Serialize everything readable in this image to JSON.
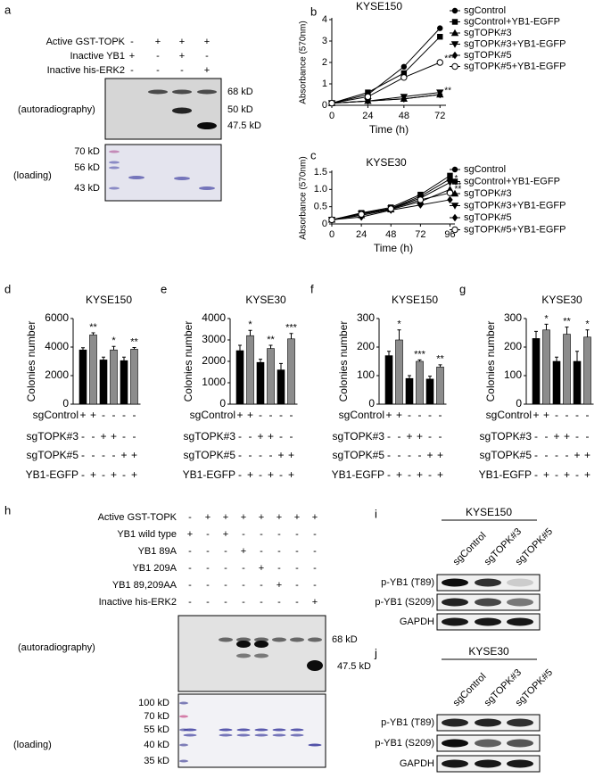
{
  "panel_a": {
    "label": "a",
    "rows": [
      {
        "name": "Active GST-TOPK",
        "signs": [
          "-",
          "+",
          "+",
          "+"
        ]
      },
      {
        "name": "Inactive YB1",
        "signs": [
          "+",
          "-",
          "+",
          "-"
        ]
      },
      {
        "name": "Inactive his-ERK2",
        "signs": [
          "-",
          "-",
          "-",
          "+"
        ]
      }
    ],
    "markers": [
      "68 kD",
      "50 kD",
      "47.5 kD"
    ],
    "autoradiography_label": "(autoradiography)",
    "loading_label": "(loading)",
    "ladder": [
      "70 kD",
      "56 kD",
      "43 kD"
    ]
  },
  "chart_data": [
    {
      "type": "line",
      "panel_label": "b",
      "title": "KYSE150",
      "x_label": "Time (h)",
      "y_label": "Absorbance (570nm)",
      "x": [
        0,
        24,
        48,
        72
      ],
      "xlim": [
        0,
        76
      ],
      "xticks": [
        0,
        24,
        48,
        72
      ],
      "ylim": [
        0,
        4
      ],
      "yticks": [
        0,
        1,
        2,
        3,
        4
      ],
      "series": [
        {
          "name": "sgControl",
          "color": "#000000",
          "marker": "circle",
          "values": [
            0.1,
            0.5,
            1.8,
            3.6
          ]
        },
        {
          "name": "sgControl+YB1-EGFP",
          "color": "#000000",
          "marker": "square",
          "values": [
            0.1,
            0.6,
            1.5,
            3.2
          ]
        },
        {
          "name": "sgTOPK#3",
          "color": "#000000",
          "marker": "triangle",
          "values": [
            0.1,
            0.2,
            0.3,
            0.5
          ]
        },
        {
          "name": "sgTOPK#3+YB1-EGFP",
          "color": "#000000",
          "marker": "triangle-down",
          "values": [
            0.1,
            0.2,
            0.4,
            0.6
          ]
        },
        {
          "name": "sgTOPK#5",
          "color": "#000000",
          "marker": "diamond",
          "values": [
            0.1,
            0.2,
            0.3,
            0.5
          ],
          "annotation": "**"
        },
        {
          "name": "sgTOPK#5+YB1-EGFP",
          "color": "#000000",
          "marker": "open-circle",
          "values": [
            0.1,
            0.4,
            1.3,
            2.0
          ],
          "annotation": "***"
        }
      ]
    },
    {
      "type": "line",
      "panel_label": "c",
      "title": "KYSE30",
      "x_label": "Time (h)",
      "y_label": "Absorbance (570nm)",
      "x": [
        0,
        24,
        48,
        72,
        96
      ],
      "xlim": [
        0,
        100
      ],
      "xticks": [
        0,
        24,
        48,
        72,
        96
      ],
      "ylim": [
        0,
        1.5
      ],
      "yticks": [
        0,
        0.5,
        {
          "value": 1,
          "label": "1.0"
        },
        1.5
      ],
      "series": [
        {
          "name": "sgControl",
          "color": "#000000",
          "marker": "circle",
          "values": [
            0.12,
            0.3,
            0.45,
            0.8,
            1.3
          ]
        },
        {
          "name": "sgControl+YB1-EGFP",
          "color": "#000000",
          "marker": "square",
          "values": [
            0.12,
            0.32,
            0.48,
            0.85,
            1.4
          ]
        },
        {
          "name": "sgTOPK#3",
          "color": "#000000",
          "marker": "triangle",
          "values": [
            0.12,
            0.25,
            0.42,
            0.65,
            1.0
          ],
          "annotation": "**"
        },
        {
          "name": "sgTOPK#3+YB1-EGFP",
          "color": "#000000",
          "marker": "triangle-down",
          "values": [
            0.12,
            0.3,
            0.45,
            0.75,
            1.2
          ],
          "annotation": "*"
        },
        {
          "name": "sgTOPK#5",
          "color": "#000000",
          "marker": "diamond",
          "values": [
            0.12,
            0.2,
            0.4,
            0.55,
            0.7
          ]
        },
        {
          "name": "sgTOPK#5+YB1-EGFP",
          "color": "#000000",
          "marker": "open-circle",
          "values": [
            0.12,
            0.28,
            0.44,
            0.7,
            0.9
          ],
          "annotation": "**"
        }
      ]
    },
    {
      "type": "bar",
      "panel_label": "d",
      "title": "KYSE150",
      "y_label": "Colonies number",
      "ylim": [
        0,
        6000
      ],
      "yticks": [
        0,
        2000,
        4000,
        6000
      ],
      "colors": [
        "#000000",
        "#8c8c8c"
      ],
      "values": [
        3800,
        4850,
        3100,
        3800,
        3050,
        3850
      ],
      "errors": [
        150,
        150,
        200,
        250,
        250,
        120
      ],
      "significance": [
        null,
        "**",
        null,
        "*",
        null,
        "**"
      ],
      "conditions": [
        {
          "name": "sgControl",
          "signs": [
            "+",
            "+",
            "-",
            "-",
            "-",
            "-"
          ]
        },
        {
          "name": "sgTOPK#3",
          "signs": [
            "-",
            "-",
            "+",
            "+",
            "-",
            "-"
          ]
        },
        {
          "name": "sgTOPK#5",
          "signs": [
            "-",
            "-",
            "-",
            "-",
            "+",
            "+"
          ]
        },
        {
          "name": "YB1-EGFP",
          "signs": [
            "-",
            "+",
            "-",
            "+",
            "-",
            "+"
          ]
        }
      ]
    },
    {
      "type": "bar",
      "panel_label": "e",
      "title": "KYSE30",
      "y_label": "Colonies number",
      "ylim": [
        0,
        4000
      ],
      "yticks": [
        0,
        1000,
        2000,
        3000,
        4000
      ],
      "colors": [
        "#000000",
        "#8c8c8c"
      ],
      "values": [
        2500,
        3200,
        1950,
        2600,
        1600,
        3050
      ],
      "errors": [
        250,
        250,
        150,
        150,
        300,
        250
      ],
      "significance": [
        null,
        "*",
        null,
        "**",
        null,
        "***"
      ],
      "conditions": [
        {
          "name": "sgControl",
          "signs": [
            "+",
            "+",
            "-",
            "-",
            "-",
            "-"
          ]
        },
        {
          "name": "sgTOPK#3",
          "signs": [
            "-",
            "-",
            "+",
            "+",
            "-",
            "-"
          ]
        },
        {
          "name": "sgTOPK#5",
          "signs": [
            "-",
            "-",
            "-",
            "-",
            "+",
            "+"
          ]
        },
        {
          "name": "YB1-EGFP",
          "signs": [
            "-",
            "+",
            "-",
            "+",
            "-",
            "+"
          ]
        }
      ]
    },
    {
      "type": "bar",
      "panel_label": "f",
      "title": "KYSE150",
      "y_label": "Colonies number",
      "ylim": [
        0,
        300
      ],
      "yticks": [
        0,
        100,
        200,
        300
      ],
      "colors": [
        "#000000",
        "#8c8c8c"
      ],
      "values": [
        170,
        225,
        90,
        150,
        88,
        130
      ],
      "errors": [
        15,
        35,
        10,
        5,
        10,
        8
      ],
      "significance": [
        null,
        "*",
        null,
        "***",
        null,
        "**"
      ],
      "conditions": [
        {
          "name": "sgControl",
          "signs": [
            "+",
            "+",
            "-",
            "-",
            "-",
            "-"
          ]
        },
        {
          "name": "sgTOPK#3",
          "signs": [
            "-",
            "-",
            "+",
            "+",
            "-",
            "-"
          ]
        },
        {
          "name": "sgTOPK#5",
          "signs": [
            "-",
            "-",
            "-",
            "-",
            "+",
            "+"
          ]
        },
        {
          "name": "YB1-EGFP",
          "signs": [
            "-",
            "+",
            "-",
            "+",
            "-",
            "+"
          ]
        }
      ]
    },
    {
      "type": "bar",
      "panel_label": "g",
      "title": "KYSE30",
      "y_label": "Colonies number",
      "ylim": [
        0,
        300
      ],
      "yticks": [
        0,
        100,
        200,
        300
      ],
      "colors": [
        "#000000",
        "#8c8c8c"
      ],
      "values": [
        230,
        260,
        150,
        245,
        150,
        235
      ],
      "errors": [
        25,
        20,
        15,
        25,
        35,
        25
      ],
      "significance": [
        null,
        "*",
        null,
        "**",
        null,
        "*"
      ],
      "conditions": [
        {
          "name": "sgControl",
          "signs": [
            "+",
            "+",
            "-",
            "-",
            "-",
            "-"
          ]
        },
        {
          "name": "sgTOPK#3",
          "signs": [
            "-",
            "-",
            "+",
            "+",
            "-",
            "-"
          ]
        },
        {
          "name": "sgTOPK#5",
          "signs": [
            "-",
            "-",
            "-",
            "-",
            "+",
            "+"
          ]
        },
        {
          "name": "YB1-EGFP",
          "signs": [
            "-",
            "+",
            "-",
            "+",
            "-",
            "+"
          ]
        }
      ]
    }
  ],
  "panel_h": {
    "label": "h",
    "rows": [
      {
        "name": "Active GST-TOPK",
        "signs": [
          "-",
          "+",
          "+",
          "+",
          "+",
          "+",
          "+",
          "+"
        ]
      },
      {
        "name": "YB1 wild type",
        "signs": [
          "+",
          "-",
          "+",
          "-",
          "-",
          "-",
          "-",
          "-"
        ]
      },
      {
        "name": "YB1 89A",
        "signs": [
          "-",
          "-",
          "-",
          "+",
          "-",
          "-",
          "-",
          "-"
        ]
      },
      {
        "name": "YB1 209A",
        "signs": [
          "-",
          "-",
          "-",
          "-",
          "+",
          "-",
          "-",
          "-"
        ]
      },
      {
        "name": "YB1 89,209AA",
        "signs": [
          "-",
          "-",
          "-",
          "-",
          "-",
          "+",
          "-",
          "-"
        ]
      },
      {
        "name": "Inactive his-ERK2",
        "signs": [
          "-",
          "-",
          "-",
          "-",
          "-",
          "-",
          "-",
          "+"
        ]
      }
    ],
    "markers": [
      "68 kD",
      "47.5 kD"
    ],
    "autoradiography_label": "(autoradiography)",
    "loading_label": "(loading)",
    "ladder": [
      "100 kD",
      "70 kD",
      "55 kD",
      "40 kD",
      "35 kD"
    ]
  },
  "panel_i": {
    "label": "i",
    "title": "KYSE150",
    "lanes": [
      "sgControl",
      "sgTOPK#3",
      "sgTOPK#5"
    ],
    "rows": [
      "p-YB1 (T89)",
      "p-YB1 (S209)",
      "GAPDH"
    ]
  },
  "panel_j": {
    "label": "j",
    "title": "KYSE30",
    "lanes": [
      "sgControl",
      "sgTOPK#3",
      "sgTOPK#5"
    ],
    "rows": [
      "p-YB1 (T89)",
      "p-YB1 (S209)",
      "GAPDH"
    ]
  }
}
